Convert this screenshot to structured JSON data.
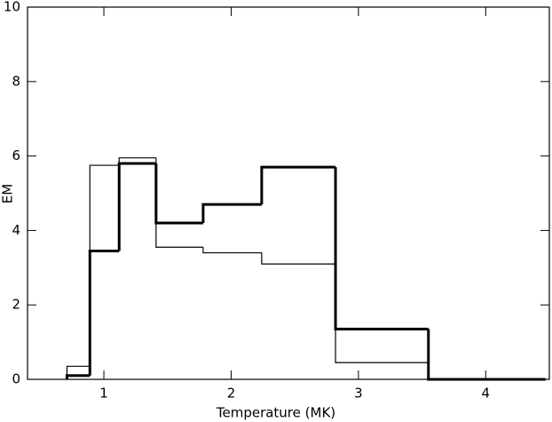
{
  "chart_data": {
    "type": "histogram",
    "xlabel": "Temperature (MK)",
    "ylabel": "EM",
    "bins": [
      0.71,
      0.89,
      1.12,
      1.41,
      1.78,
      2.24,
      2.82,
      3.55,
      4.47
    ],
    "series": [
      {
        "color": "#000000",
        "line_width": 3,
        "values": [
          0.1,
          3.45,
          5.8,
          4.2,
          4.7,
          5.7,
          1.35,
          0
        ]
      },
      {
        "color": "#000000",
        "line_width": 1.2,
        "values": [
          0.35,
          5.75,
          5.95,
          3.55,
          3.4,
          3.1,
          0.45,
          0
        ]
      }
    ],
    "xlim": [
      0.4,
      4.5
    ],
    "ylim": [
      0,
      10
    ],
    "xticks": [
      1,
      2,
      3,
      4
    ],
    "yticks": [
      0,
      2,
      4,
      6,
      8,
      10
    ]
  }
}
